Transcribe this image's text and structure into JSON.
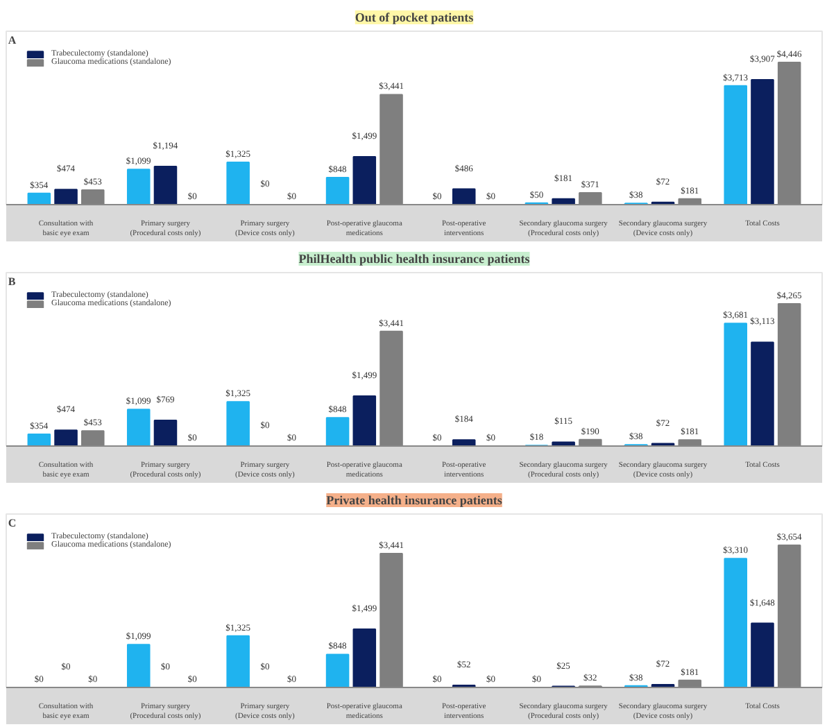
{
  "chart_data": [
    {
      "type": "bar",
      "title": "Out of pocket patients",
      "annotations": [
        "A"
      ],
      "legend": "top left",
      "grid": false,
      "categories": [
        "Consultation with\nbasic eye exam",
        "Primary surgery\n(Procedural costs only)",
        "Primary surgery\n(Device costs only)",
        "Post-operative glaucoma\nmedications",
        "Post-operative\ninterventions",
        "Secondary glaucoma surgery\n(Procedural costs only)",
        "Secondary glaucoma surgery\n(Device costs only)",
        "Total Costs"
      ],
      "series": [
        {
          "color": "#1fb3ef",
          "values": [
            354,
            1099,
            1325,
            848,
            0,
            50,
            38,
            3713
          ],
          "value_labels": [
            "$354",
            "$1,099",
            "$1,325",
            "$848",
            "$0",
            "$50",
            "$38",
            "$3,713"
          ]
        },
        {
          "name": "Trabeculectomy (standalone)",
          "color": "#0b1f5e",
          "values": [
            474,
            1194,
            0,
            1499,
            486,
            181,
            72,
            3907
          ],
          "value_labels": [
            "$474",
            "$1,194",
            "$0",
            "$1,499",
            "$486",
            "$181",
            "$72",
            "$3,907"
          ]
        },
        {
          "name": "Glaucoma medications (standalone)",
          "color": "#7f7f7f",
          "values": [
            453,
            0,
            0,
            3441,
            0,
            371,
            181,
            4446
          ],
          "value_labels": [
            "$453",
            "$0",
            "$0",
            "$3,441",
            "$0",
            "$371",
            "$181",
            "$4,446"
          ]
        }
      ]
    },
    {
      "type": "bar",
      "title": "PhilHealth public health insurance patients",
      "annotations": [
        "B"
      ],
      "legend": "top left",
      "grid": false,
      "categories": [
        "Consultation with\nbasic eye exam",
        "Primary surgery\n(Procedural costs only)",
        "Primary surgery\n(Device costs only)",
        "Post-operative glaucoma\nmedications",
        "Post-operative\ninterventions",
        "Secondary glaucoma surgery\n(Procedural costs only)",
        "Secondary glaucoma surgery\n(Device costs only)",
        "Total Costs"
      ],
      "series": [
        {
          "color": "#1fb3ef",
          "values": [
            354,
            1099,
            1325,
            848,
            0,
            18,
            38,
            3681
          ],
          "value_labels": [
            "$354",
            "$1,099",
            "$1,325",
            "$848",
            "$0",
            "$18",
            "$38",
            "$3,681"
          ]
        },
        {
          "name": "Trabeculectomy (standalone)",
          "color": "#0b1f5e",
          "values": [
            474,
            769,
            0,
            1499,
            184,
            115,
            72,
            3113
          ],
          "value_labels": [
            "$474",
            "$769",
            "$0",
            "$1,499",
            "$184",
            "$115",
            "$72",
            "$3,113"
          ]
        },
        {
          "name": "Glaucoma medications (standalone)",
          "color": "#7f7f7f",
          "values": [
            453,
            0,
            0,
            3441,
            0,
            190,
            181,
            4265
          ],
          "value_labels": [
            "$453",
            "$0",
            "$0",
            "$3,441",
            "$0",
            "$190",
            "$181",
            "$4,265"
          ]
        }
      ]
    },
    {
      "type": "bar",
      "title": "Private health insurance patients",
      "annotations": [
        "C"
      ],
      "legend": "top left",
      "grid": false,
      "categories": [
        "Consultation with\nbasic eye exam",
        "Primary surgery\n(Procedural costs only)",
        "Primary surgery\n(Device costs only)",
        "Post-operative glaucoma\nmedications",
        "Post-operative\ninterventions",
        "Secondary glaucoma surgery\n(Procedural costs only)",
        "Secondary glaucoma surgery\n(Device costs only)",
        "Total Costs"
      ],
      "series": [
        {
          "color": "#1fb3ef",
          "values": [
            0,
            1099,
            1325,
            848,
            0,
            0,
            38,
            3310
          ],
          "value_labels": [
            "$0",
            "$1,099",
            "$1,325",
            "$848",
            "$0",
            "$0",
            "$38",
            "$3,310"
          ]
        },
        {
          "name": "Trabeculectomy (standalone)",
          "color": "#0b1f5e",
          "values": [
            0,
            0,
            0,
            1499,
            52,
            25,
            72,
            1648
          ],
          "value_labels": [
            "$0",
            "$0",
            "$0",
            "$1,499",
            "$52",
            "$25",
            "$72",
            "$1,648"
          ]
        },
        {
          "name": "Glaucoma medications (standalone)",
          "color": "#7f7f7f",
          "values": [
            0,
            0,
            0,
            3441,
            0,
            32,
            181,
            3654
          ],
          "value_labels": [
            "$0",
            "$0",
            "$0",
            "$3,441",
            "$0",
            "$32",
            "$181",
            "$3,654"
          ]
        }
      ]
    }
  ]
}
